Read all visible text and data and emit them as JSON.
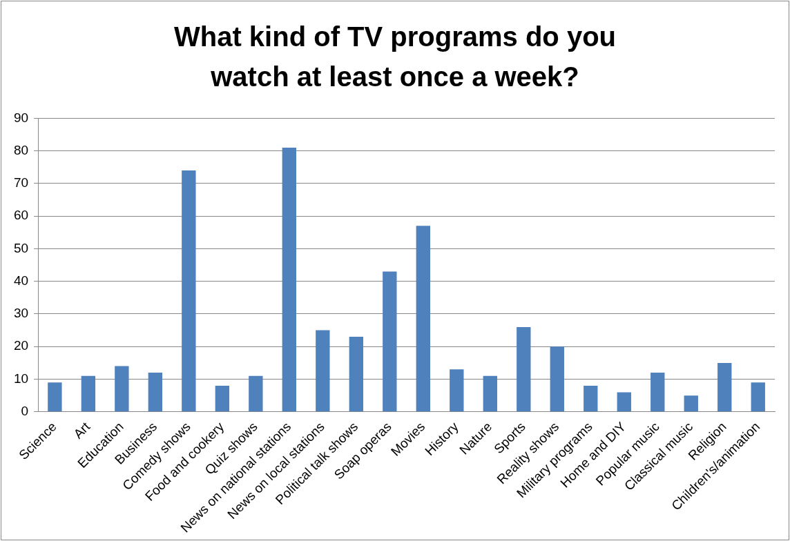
{
  "chart_data": {
    "type": "bar",
    "title": "What kind of TV programs do you watch at least once a week?",
    "categories": [
      "Science",
      "Art",
      "Education",
      "Business",
      "Comedy shows",
      "Food and cookery",
      "Quiz shows",
      "News on national stations",
      "News on local stations",
      "Political talk shows",
      "Soap operas",
      "Movies",
      "History",
      "Nature",
      "Sports",
      "Reality shows",
      "Military programs",
      "Home and DIY",
      "Popular music",
      "Classical music",
      "Religion",
      "Children's/animation"
    ],
    "values": [
      9,
      11,
      14,
      12,
      74,
      8,
      11,
      81,
      25,
      23,
      43,
      57,
      13,
      11,
      26,
      20,
      8,
      6,
      12,
      5,
      15,
      9
    ],
    "color": "#4f81bd",
    "ylim": [
      0,
      90
    ],
    "yticks": [
      0,
      10,
      20,
      30,
      40,
      50,
      60,
      70,
      80,
      90
    ],
    "grid": "y",
    "legend": false
  }
}
